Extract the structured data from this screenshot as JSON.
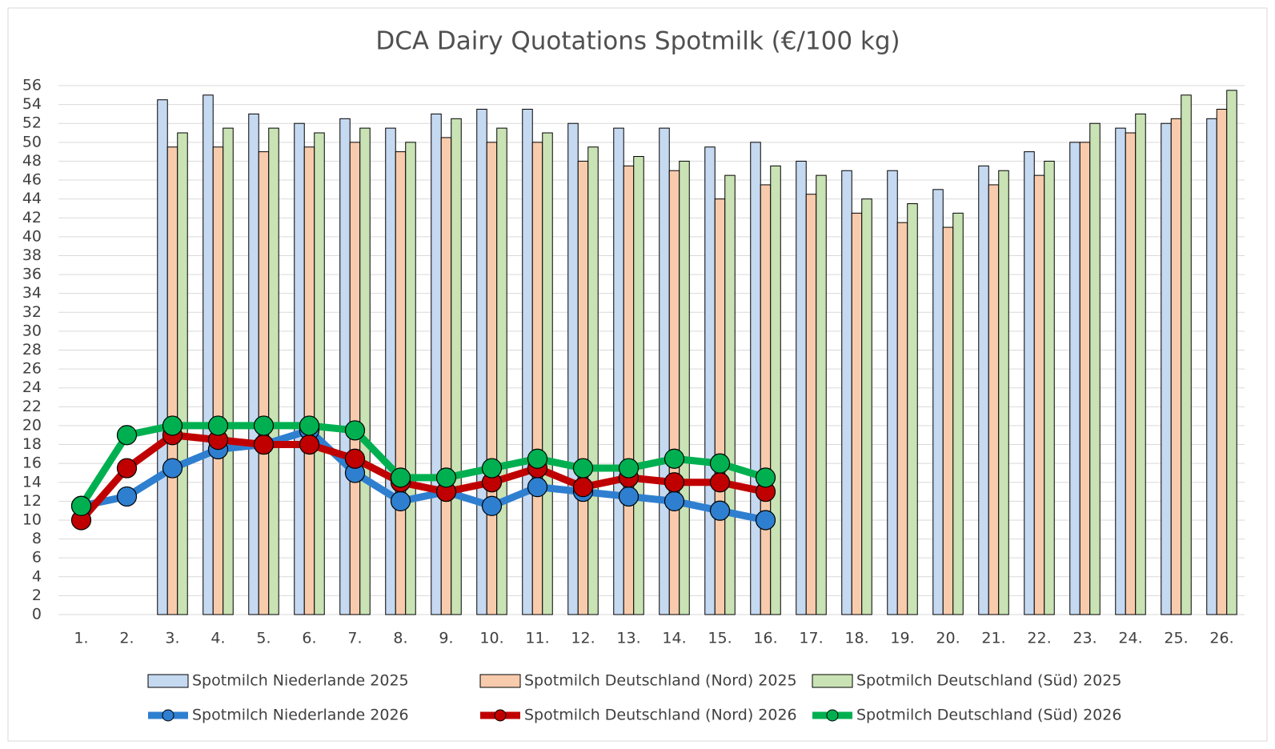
{
  "chart_data": {
    "type": "bar",
    "title": "DCA Dairy Quotations Spotmilk (€/100 kg)",
    "categories": [
      "1.",
      "2.",
      "3.",
      "4.",
      "5.",
      "6.",
      "7.",
      "8.",
      "9.",
      "10.",
      "11.",
      "12.",
      "13.",
      "14.",
      "15.",
      "16.",
      "17.",
      "18.",
      "19.",
      "20.",
      "21.",
      "22.",
      "23.",
      "24.",
      "25.",
      "26."
    ],
    "ylim": [
      0,
      56
    ],
    "yticks": [
      0,
      2,
      4,
      6,
      8,
      10,
      12,
      14,
      16,
      18,
      20,
      22,
      24,
      26,
      28,
      30,
      32,
      34,
      36,
      38,
      40,
      42,
      44,
      46,
      48,
      50,
      52,
      54,
      56
    ],
    "grid": true,
    "legend": "bottom",
    "series": [
      {
        "name": "Spotmilch Niederlande 2025",
        "type": "bar",
        "color": "#c5d9f1",
        "values": [
          null,
          null,
          54.5,
          55,
          53,
          52,
          52.5,
          51.5,
          53,
          53.5,
          53.5,
          52,
          51.5,
          51.5,
          49.5,
          50,
          48,
          47,
          47,
          45,
          47.5,
          49,
          50,
          51.5,
          52,
          52.5
        ]
      },
      {
        "name": "Spotmilch Deutschland (Nord) 2025",
        "type": "bar",
        "color": "#f8cbad",
        "values": [
          null,
          null,
          49.5,
          49.5,
          49,
          49.5,
          50,
          49,
          50.5,
          50,
          50,
          48,
          47.5,
          47,
          44,
          45.5,
          44.5,
          42.5,
          41.5,
          41,
          45.5,
          46.5,
          50,
          51,
          52.5,
          53.5
        ]
      },
      {
        "name": "Spotmilch Deutschland (Süd) 2025",
        "type": "bar",
        "color": "#c9e3b5",
        "values": [
          null,
          null,
          51,
          51.5,
          51.5,
          51,
          51.5,
          50,
          52.5,
          51.5,
          51,
          49.5,
          48.5,
          48,
          46.5,
          47.5,
          46.5,
          44,
          43.5,
          42.5,
          47,
          48,
          52,
          53,
          55,
          55.5
        ]
      },
      {
        "name": "Spotmilch Niederlande 2026",
        "type": "line",
        "color": "#2f7fd0",
        "values": [
          11.5,
          12.5,
          15.5,
          17.5,
          18,
          19.5,
          15,
          12,
          13,
          11.5,
          13.5,
          13,
          12.5,
          12,
          11,
          10,
          null,
          null,
          null,
          null,
          null,
          null,
          null,
          null,
          null,
          null
        ]
      },
      {
        "name": "Spotmilch Deutschland (Nord) 2026",
        "type": "line",
        "color": "#c00000",
        "values": [
          10,
          15.5,
          19,
          18.5,
          18,
          18,
          16.5,
          14,
          13,
          14,
          15.5,
          13.5,
          14.5,
          14,
          14,
          13,
          null,
          null,
          null,
          null,
          null,
          null,
          null,
          null,
          null,
          null
        ]
      },
      {
        "name": "Spotmilch Deutschland (Süd) 2026",
        "type": "line",
        "color": "#00b050",
        "values": [
          11.5,
          19,
          20,
          20,
          20,
          20,
          19.5,
          14.5,
          14.5,
          15.5,
          16.5,
          15.5,
          15.5,
          16.5,
          16,
          14.5,
          null,
          null,
          null,
          null,
          null,
          null,
          null,
          null,
          null,
          null
        ]
      }
    ]
  }
}
